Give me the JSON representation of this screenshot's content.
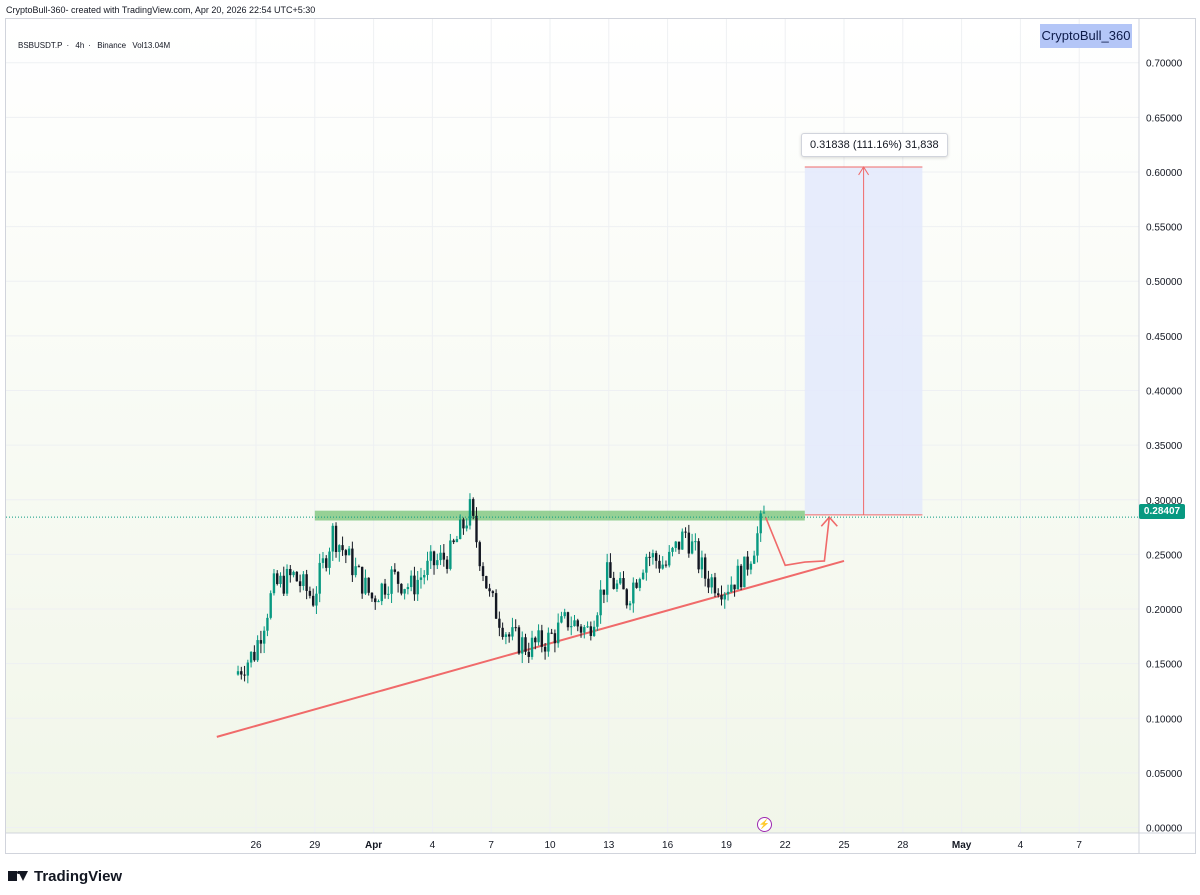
{
  "header": {
    "attribution": "CryptoBull-360- created with TradingView.com, Apr 20, 2026 22:54 UTC+5:30"
  },
  "legend": {
    "symbol": "BSBUSDT.P",
    "interval": "4h",
    "exchange": "Binance",
    "volume": "Vol13.04M"
  },
  "watermark": {
    "text": "CryptoBull_360"
  },
  "measure": {
    "label": "0.31838 (111.16%) 31,838"
  },
  "price_tag": {
    "text": "0.28407",
    "color": "#089981"
  },
  "footer": {
    "brand": "TradingView"
  },
  "colors": {
    "up": "#089981",
    "down": "#131722",
    "resistance": "#76c176",
    "trendline": "#f06a6a",
    "target_box": "#e3e9fb",
    "bg_top": "#ffffff",
    "bg_bottom": "#f1f6e9"
  },
  "chart_data": {
    "type": "candlestick",
    "title": "BSBUSDT.P · 4h · Binance",
    "ylim": [
      -0.005,
      0.74
    ],
    "y_ticks": [
      "0.70000",
      "0.65000",
      "0.60000",
      "0.55000",
      "0.50000",
      "0.45000",
      "0.40000",
      "0.35000",
      "0.30000",
      "0.25000",
      "0.20000",
      "0.15000",
      "0.10000",
      "0.05000",
      "0.00000"
    ],
    "x_ticks": [
      "26",
      "29",
      "Apr",
      "4",
      "7",
      "10",
      "13",
      "16",
      "19",
      "22",
      "25",
      "28",
      "May",
      "4",
      "7"
    ],
    "last_price": 0.28407,
    "price_path": [
      {
        "date": "Mar 25",
        "price": 0.14
      },
      {
        "date": "Mar 26",
        "price": 0.16
      },
      {
        "date": "Mar 27",
        "price": 0.22
      },
      {
        "date": "Mar 28",
        "price": 0.23
      },
      {
        "date": "Mar 29",
        "price": 0.21
      },
      {
        "date": "Mar 30",
        "price": 0.27
      },
      {
        "date": "Mar 31",
        "price": 0.24
      },
      {
        "date": "Apr 1",
        "price": 0.21
      },
      {
        "date": "Apr 2",
        "price": 0.23
      },
      {
        "date": "Apr 3",
        "price": 0.22
      },
      {
        "date": "Apr 4",
        "price": 0.24
      },
      {
        "date": "Apr 5",
        "price": 0.25
      },
      {
        "date": "Apr 6",
        "price": 0.29
      },
      {
        "date": "Apr 7",
        "price": 0.21
      },
      {
        "date": "Apr 8",
        "price": 0.175
      },
      {
        "date": "Apr 9",
        "price": 0.165
      },
      {
        "date": "Apr 10",
        "price": 0.172
      },
      {
        "date": "Apr 11",
        "price": 0.19
      },
      {
        "date": "Apr 12",
        "price": 0.18
      },
      {
        "date": "Apr 13",
        "price": 0.23
      },
      {
        "date": "Apr 14",
        "price": 0.21
      },
      {
        "date": "Apr 15",
        "price": 0.25
      },
      {
        "date": "Apr 16",
        "price": 0.24
      },
      {
        "date": "Apr 17",
        "price": 0.27
      },
      {
        "date": "Apr 18",
        "price": 0.23
      },
      {
        "date": "Apr 19",
        "price": 0.22
      },
      {
        "date": "Apr 20",
        "price": 0.235
      },
      {
        "date": "Apr 21",
        "price": 0.284
      }
    ],
    "resistance_zone": {
      "from_date": "Mar 29",
      "to_date": "Apr 23",
      "low": 0.281,
      "high": 0.29
    },
    "trendline": {
      "start": {
        "date": "Mar 24",
        "price": 0.083
      },
      "end": {
        "date": "Apr 25",
        "price": 0.244
      }
    },
    "projection": [
      {
        "date": "Apr 21",
        "price": 0.284
      },
      {
        "date": "Apr 22",
        "price": 0.24
      },
      {
        "date": "Apr 23",
        "price": 0.243
      },
      {
        "date": "Apr 24",
        "price": 0.244
      },
      {
        "date": "Apr 24",
        "price": 0.284
      }
    ],
    "target": {
      "from_date": "Apr 23",
      "to_date": "Apr 29",
      "base": 0.2862,
      "top": 0.6046,
      "change": 0.31838,
      "percent": 111.16
    }
  }
}
